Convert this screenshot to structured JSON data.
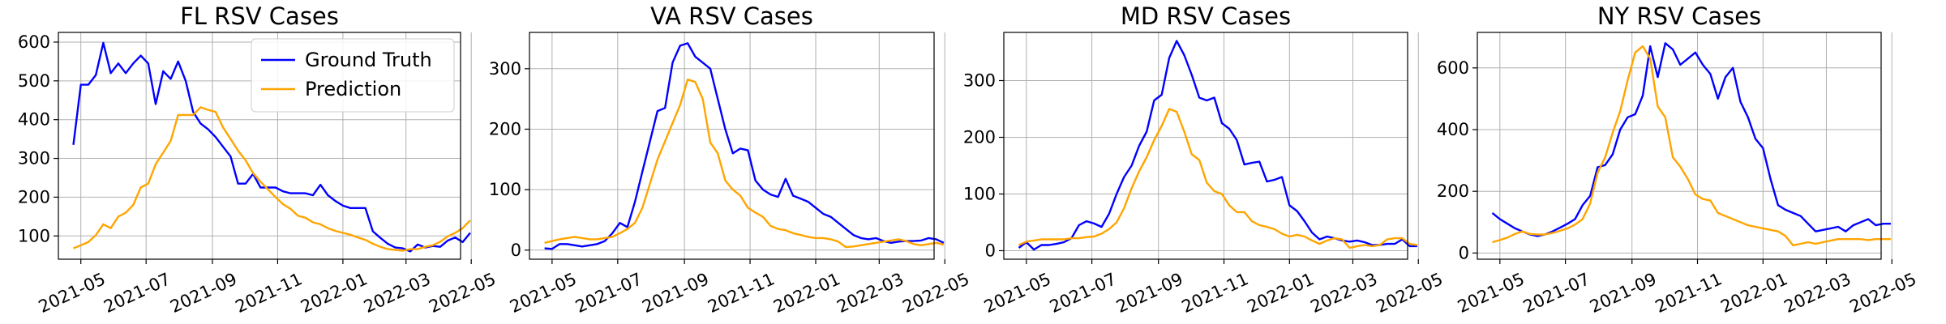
{
  "chart_data": [
    {
      "type": "line",
      "title": "FL RSV Cases",
      "xlabel": "",
      "ylabel": "",
      "x_start": "2021-04-24",
      "x_step_days": 7,
      "xlim": [
        "2021-04-10",
        "2022-04-21"
      ],
      "ylim": [
        40,
        625
      ],
      "x_ticks": [
        "2021-05-01",
        "2021-07-01",
        "2021-09-01",
        "2021-11-01",
        "2022-01-01",
        "2022-03-01",
        "2022-05-01"
      ],
      "x_tick_labels": [
        "2021-05",
        "2021-07",
        "2021-09",
        "2021-11",
        "2022-01",
        "2022-03",
        "2022-05"
      ],
      "y_ticks": [
        100,
        200,
        300,
        400,
        500,
        600
      ],
      "y_tick_labels": [
        "100",
        "200",
        "300",
        "400",
        "500",
        "600"
      ],
      "grid": true,
      "legend": {
        "position": "top-right",
        "entries": [
          "Ground Truth",
          "Prediction"
        ]
      },
      "series": [
        {
          "name": "Ground Truth",
          "color": "#0000ff",
          "values": [
            335,
            490,
            490,
            515,
            598,
            520,
            545,
            520,
            545,
            565,
            545,
            440,
            525,
            505,
            550,
            500,
            420,
            390,
            375,
            355,
            330,
            305,
            235,
            235,
            260,
            225,
            225,
            225,
            215,
            210,
            210,
            210,
            205,
            232,
            205,
            190,
            178,
            172,
            172,
            172,
            112,
            95,
            80,
            70,
            68,
            60,
            78,
            70,
            74,
            72,
            88,
            96,
            84,
            108
          ]
        },
        {
          "name": "Prediction",
          "color": "#ffa500",
          "values": [
            68,
            76,
            84,
            102,
            130,
            120,
            150,
            160,
            180,
            225,
            235,
            285,
            315,
            345,
            412,
            412,
            412,
            432,
            425,
            420,
            380,
            350,
            320,
            295,
            262,
            240,
            220,
            200,
            182,
            170,
            152,
            147,
            135,
            130,
            120,
            113,
            108,
            103,
            96,
            90,
            80,
            72,
            66,
            64,
            62,
            66,
            66,
            72,
            76,
            85,
            99,
            108,
            120,
            140
          ]
        }
      ]
    },
    {
      "type": "line",
      "title": "VA RSV Cases",
      "xlabel": "",
      "ylabel": "",
      "x_start": "2021-04-24",
      "x_step_days": 7,
      "xlim": [
        "2021-04-10",
        "2022-04-21"
      ],
      "ylim": [
        -15,
        360
      ],
      "x_ticks": [
        "2021-05-01",
        "2021-07-01",
        "2021-09-01",
        "2021-11-01",
        "2022-01-01",
        "2022-03-01",
        "2022-05-01"
      ],
      "x_tick_labels": [
        "2021-05",
        "2021-07",
        "2021-09",
        "2021-11",
        "2022-01",
        "2022-03",
        "2022-05"
      ],
      "y_ticks": [
        0,
        100,
        200,
        300
      ],
      "y_tick_labels": [
        "0",
        "100",
        "200",
        "300"
      ],
      "grid": true,
      "series": [
        {
          "name": "Ground Truth",
          "color": "#0000ff",
          "values": [
            3,
            2,
            10,
            10,
            8,
            6,
            8,
            10,
            15,
            28,
            45,
            38,
            80,
            130,
            180,
            230,
            235,
            310,
            338,
            342,
            320,
            310,
            300,
            250,
            200,
            160,
            168,
            165,
            115,
            100,
            92,
            88,
            118,
            90,
            85,
            80,
            70,
            60,
            55,
            45,
            35,
            25,
            20,
            18,
            20,
            15,
            12,
            14,
            15,
            15,
            16,
            20,
            18,
            12
          ]
        },
        {
          "name": "Prediction",
          "color": "#ffa500",
          "values": [
            12,
            15,
            18,
            20,
            22,
            20,
            18,
            18,
            20,
            22,
            28,
            35,
            45,
            70,
            110,
            150,
            180,
            210,
            240,
            282,
            278,
            250,
            178,
            160,
            115,
            100,
            90,
            70,
            62,
            55,
            40,
            35,
            33,
            28,
            25,
            22,
            20,
            20,
            18,
            14,
            5,
            6,
            8,
            10,
            12,
            14,
            16,
            18,
            15,
            10,
            8,
            10,
            12,
            9
          ]
        }
      ]
    },
    {
      "type": "line",
      "title": "MD RSV Cases",
      "xlabel": "",
      "ylabel": "",
      "x_start": "2021-04-24",
      "x_step_days": 7,
      "xlim": [
        "2021-04-10",
        "2022-04-21"
      ],
      "ylim": [
        -15,
        385
      ],
      "x_ticks": [
        "2021-05-01",
        "2021-07-01",
        "2021-09-01",
        "2021-11-01",
        "2022-01-01",
        "2022-03-01",
        "2022-05-01"
      ],
      "x_tick_labels": [
        "2021-05",
        "2021-07",
        "2021-09",
        "2021-11",
        "2022-01",
        "2022-03",
        "2022-05"
      ],
      "y_ticks": [
        0,
        100,
        200,
        300
      ],
      "y_tick_labels": [
        "0",
        "100",
        "200",
        "300"
      ],
      "grid": true,
      "series": [
        {
          "name": "Ground Truth",
          "color": "#0000ff",
          "values": [
            5,
            15,
            2,
            10,
            10,
            12,
            15,
            22,
            45,
            52,
            48,
            42,
            65,
            100,
            130,
            150,
            185,
            210,
            265,
            275,
            340,
            370,
            345,
            310,
            270,
            265,
            270,
            225,
            215,
            195,
            152,
            155,
            157,
            122,
            125,
            130,
            80,
            70,
            52,
            32,
            20,
            25,
            22,
            18,
            16,
            18,
            15,
            10,
            10,
            12,
            12,
            20,
            8,
            8
          ]
        },
        {
          "name": "Prediction",
          "color": "#ffa500",
          "values": [
            10,
            16,
            18,
            20,
            20,
            20,
            20,
            22,
            22,
            24,
            25,
            30,
            38,
            50,
            75,
            110,
            140,
            165,
            195,
            220,
            250,
            245,
            210,
            170,
            160,
            120,
            105,
            100,
            80,
            68,
            68,
            52,
            45,
            42,
            38,
            30,
            25,
            28,
            25,
            18,
            12,
            18,
            22,
            20,
            5,
            8,
            10,
            8,
            10,
            20,
            22,
            22,
            12,
            10
          ]
        }
      ]
    },
    {
      "type": "line",
      "title": "NY RSV Cases",
      "xlabel": "",
      "ylabel": "",
      "x_start": "2021-04-24",
      "x_step_days": 7,
      "xlim": [
        "2021-04-10",
        "2022-04-21"
      ],
      "ylim": [
        -20,
        715
      ],
      "x_ticks": [
        "2021-05-01",
        "2021-07-01",
        "2021-09-01",
        "2021-11-01",
        "2022-01-01",
        "2022-03-01",
        "2022-05-01"
      ],
      "x_tick_labels": [
        "2021-05",
        "2021-07",
        "2021-09",
        "2021-11",
        "2022-01",
        "2022-03",
        "2022-05"
      ],
      "y_ticks": [
        0,
        200,
        400,
        600
      ],
      "y_tick_labels": [
        "0",
        "200",
        "400",
        "600"
      ],
      "grid": true,
      "series": [
        {
          "name": "Ground Truth",
          "color": "#0000ff",
          "values": [
            130,
            110,
            95,
            80,
            70,
            60,
            55,
            60,
            70,
            82,
            95,
            110,
            155,
            185,
            278,
            285,
            320,
            400,
            440,
            450,
            510,
            670,
            570,
            680,
            660,
            610,
            630,
            650,
            610,
            580,
            500,
            570,
            600,
            490,
            440,
            370,
            340,
            240,
            155,
            140,
            130,
            120,
            95,
            70,
            75,
            80,
            85,
            70,
            90,
            100,
            110,
            90,
            95,
            95
          ]
        },
        {
          "name": "Prediction",
          "color": "#ffa500",
          "values": [
            35,
            42,
            50,
            62,
            70,
            62,
            60,
            60,
            65,
            72,
            80,
            92,
            110,
            160,
            260,
            310,
            390,
            460,
            560,
            650,
            670,
            630,
            475,
            440,
            310,
            280,
            240,
            190,
            175,
            170,
            130,
            120,
            110,
            100,
            90,
            85,
            80,
            75,
            70,
            55,
            25,
            30,
            35,
            30,
            35,
            40,
            45,
            45,
            45,
            45,
            42,
            45,
            45,
            45
          ]
        }
      ]
    }
  ]
}
